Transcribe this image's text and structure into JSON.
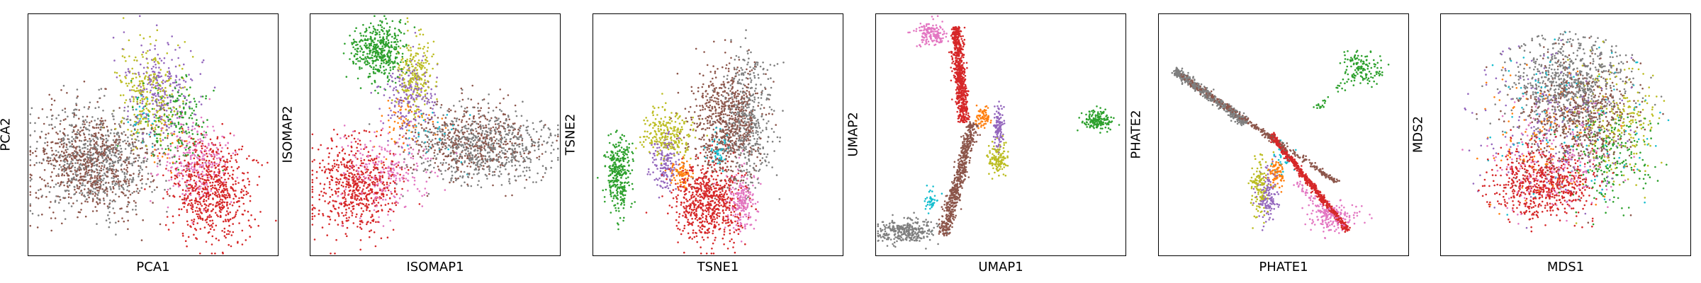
{
  "chart_data": [
    {
      "type": "scatter",
      "xlabel": "PCA1",
      "ylabel": "PCA2",
      "grid": false,
      "legend": "none",
      "point_colors": [
        "#8c564b",
        "#7f7f7f",
        "#d62728",
        "#e377c2",
        "#bcbd22",
        "#9467bd",
        "#2ca02c",
        "#ff7f0e",
        "#17becf"
      ],
      "clusters": [
        {
          "color": "#7f7f7f",
          "cx": 0.27,
          "cy": 0.4,
          "sx": 0.12,
          "sy": 0.11,
          "n": 650
        },
        {
          "color": "#8c564b",
          "cx": 0.25,
          "cy": 0.38,
          "sx": 0.12,
          "sy": 0.11,
          "n": 700
        },
        {
          "color": "#bcbd22",
          "cx": 0.49,
          "cy": 0.66,
          "sx": 0.07,
          "sy": 0.1,
          "n": 260
        },
        {
          "color": "#9467bd",
          "cx": 0.53,
          "cy": 0.68,
          "sx": 0.07,
          "sy": 0.1,
          "n": 260
        },
        {
          "color": "#2ca02c",
          "cx": 0.6,
          "cy": 0.55,
          "sx": 0.07,
          "sy": 0.1,
          "n": 180
        },
        {
          "color": "#e377c2",
          "cx": 0.68,
          "cy": 0.38,
          "sx": 0.07,
          "sy": 0.08,
          "n": 260
        },
        {
          "color": "#d62728",
          "cx": 0.74,
          "cy": 0.27,
          "sx": 0.08,
          "sy": 0.1,
          "n": 650
        },
        {
          "color": "#17becf",
          "cx": 0.45,
          "cy": 0.55,
          "sx": 0.03,
          "sy": 0.05,
          "n": 25
        },
        {
          "color": "#ff7f0e",
          "cx": 0.55,
          "cy": 0.45,
          "sx": 0.05,
          "sy": 0.05,
          "n": 30
        }
      ]
    },
    {
      "type": "scatter",
      "xlabel": "ISOMAP1",
      "ylabel": "ISOMAP2",
      "grid": false,
      "legend": "none",
      "clusters": [
        {
          "color": "#2ca02c",
          "cx": 0.27,
          "cy": 0.85,
          "sx": 0.05,
          "sy": 0.06,
          "n": 420
        },
        {
          "color": "#bcbd22",
          "cx": 0.42,
          "cy": 0.75,
          "sx": 0.04,
          "sy": 0.08,
          "n": 220
        },
        {
          "color": "#9467bd",
          "cx": 0.4,
          "cy": 0.66,
          "sx": 0.05,
          "sy": 0.07,
          "n": 200
        },
        {
          "color": "#7f7f7f",
          "cx": 0.7,
          "cy": 0.45,
          "sx": 0.14,
          "sy": 0.07,
          "n": 650
        },
        {
          "color": "#8c564b",
          "cx": 0.63,
          "cy": 0.48,
          "sx": 0.13,
          "sy": 0.08,
          "n": 450
        },
        {
          "color": "#d62728",
          "cx": 0.18,
          "cy": 0.28,
          "sx": 0.09,
          "sy": 0.09,
          "n": 600
        },
        {
          "color": "#e377c2",
          "cx": 0.3,
          "cy": 0.35,
          "sx": 0.1,
          "sy": 0.08,
          "n": 240
        },
        {
          "color": "#ff7f0e",
          "cx": 0.38,
          "cy": 0.55,
          "sx": 0.06,
          "sy": 0.06,
          "n": 60
        },
        {
          "color": "#17becf",
          "cx": 0.5,
          "cy": 0.5,
          "sx": 0.08,
          "sy": 0.06,
          "n": 30
        }
      ]
    },
    {
      "type": "scatter",
      "xlabel": "TSNE1",
      "ylabel": "TSNE2",
      "grid": false,
      "legend": "none",
      "clusters": [
        {
          "color": "#2ca02c",
          "cx": 0.1,
          "cy": 0.34,
          "sx": 0.025,
          "sy": 0.08,
          "n": 320
        },
        {
          "color": "#bcbd22",
          "cx": 0.29,
          "cy": 0.5,
          "sx": 0.05,
          "sy": 0.05,
          "n": 240
        },
        {
          "color": "#9467bd",
          "cx": 0.28,
          "cy": 0.38,
          "sx": 0.03,
          "sy": 0.05,
          "n": 160
        },
        {
          "color": "#ff7f0e",
          "cx": 0.35,
          "cy": 0.34,
          "sx": 0.02,
          "sy": 0.025,
          "n": 80
        },
        {
          "color": "#8c564b",
          "cx": 0.53,
          "cy": 0.55,
          "sx": 0.07,
          "sy": 0.12,
          "n": 700
        },
        {
          "color": "#7f7f7f",
          "cx": 0.62,
          "cy": 0.56,
          "sx": 0.05,
          "sy": 0.14,
          "n": 450
        },
        {
          "color": "#d62728",
          "cx": 0.46,
          "cy": 0.22,
          "sx": 0.07,
          "sy": 0.08,
          "n": 650
        },
        {
          "color": "#e377c2",
          "cx": 0.6,
          "cy": 0.22,
          "sx": 0.03,
          "sy": 0.06,
          "n": 200
        },
        {
          "color": "#17becf",
          "cx": 0.5,
          "cy": 0.43,
          "sx": 0.02,
          "sy": 0.03,
          "n": 50
        }
      ]
    },
    {
      "type": "scatter",
      "xlabel": "UMAP1",
      "ylabel": "UMAP2",
      "grid": false,
      "legend": "none",
      "clusters": [
        {
          "color": "#e377c2",
          "cx": 0.22,
          "cy": 0.92,
          "sx": 0.03,
          "sy": 0.025,
          "n": 160
        },
        {
          "color": "#2ca02c",
          "cx": 0.89,
          "cy": 0.56,
          "sx": 0.03,
          "sy": 0.02,
          "n": 160
        },
        {
          "color": "#ff7f0e",
          "cx": 0.43,
          "cy": 0.58,
          "sx": 0.015,
          "sy": 0.02,
          "n": 70
        },
        {
          "color": "#9467bd",
          "cx": 0.49,
          "cy": 0.53,
          "sx": 0.01,
          "sy": 0.05,
          "n": 110
        },
        {
          "color": "#bcbd22",
          "cx": 0.49,
          "cy": 0.4,
          "sx": 0.02,
          "sy": 0.03,
          "n": 130
        },
        {
          "color": "#7f7f7f",
          "cx": 0.12,
          "cy": 0.1,
          "sx": 0.06,
          "sy": 0.025,
          "n": 320
        },
        {
          "color": "#17becf",
          "cx": 0.22,
          "cy": 0.22,
          "sx": 0.015,
          "sy": 0.03,
          "n": 40
        }
      ],
      "strips": [
        {
          "color": "#8c564b",
          "from": [
            0.27,
            0.08
          ],
          "to": [
            0.39,
            0.55
          ],
          "width": 0.025,
          "n": 600
        },
        {
          "color": "#d62728",
          "from": [
            0.32,
            0.95
          ],
          "to": [
            0.35,
            0.55
          ],
          "width": 0.025,
          "n": 650
        }
      ]
    },
    {
      "type": "scatter",
      "xlabel": "PHATE1",
      "ylabel": "PHATE2",
      "grid": false,
      "legend": "none",
      "clusters": [
        {
          "color": "#2ca02c",
          "cx": 0.82,
          "cy": 0.78,
          "sx": 0.04,
          "sy": 0.04,
          "n": 120
        },
        {
          "color": "#e377c2",
          "cx": 0.7,
          "cy": 0.15,
          "sx": 0.05,
          "sy": 0.03,
          "n": 160
        },
        {
          "color": "#bcbd22",
          "cx": 0.4,
          "cy": 0.28,
          "sx": 0.02,
          "sy": 0.06,
          "n": 140
        },
        {
          "color": "#9467bd",
          "cx": 0.44,
          "cy": 0.25,
          "sx": 0.02,
          "sy": 0.05,
          "n": 140
        },
        {
          "color": "#ff7f0e",
          "cx": 0.47,
          "cy": 0.34,
          "sx": 0.015,
          "sy": 0.03,
          "n": 80
        },
        {
          "color": "#17becf",
          "cx": 0.5,
          "cy": 0.4,
          "sx": 0.03,
          "sy": 0.04,
          "n": 30
        }
      ],
      "strips": [
        {
          "color": "#7f7f7f",
          "from": [
            0.06,
            0.77
          ],
          "to": [
            0.35,
            0.55
          ],
          "width": 0.02,
          "n": 500
        },
        {
          "color": "#8c564b",
          "from": [
            0.08,
            0.75
          ],
          "to": [
            0.72,
            0.3
          ],
          "width": 0.012,
          "n": 400
        },
        {
          "color": "#d62728",
          "from": [
            0.45,
            0.5
          ],
          "to": [
            0.76,
            0.1
          ],
          "width": 0.012,
          "n": 600
        },
        {
          "color": "#2ca02c",
          "from": [
            0.62,
            0.6
          ],
          "to": [
            0.82,
            0.78
          ],
          "width": 0.02,
          "n": 40
        },
        {
          "color": "#e377c2",
          "from": [
            0.55,
            0.3
          ],
          "to": [
            0.7,
            0.15
          ],
          "width": 0.02,
          "n": 60
        }
      ]
    },
    {
      "type": "scatter",
      "xlabel": "MDS1",
      "ylabel": "MDS2",
      "grid": false,
      "legend": "none",
      "disk": {
        "cx": 0.5,
        "cy": 0.5,
        "r": 0.43
      },
      "clusters": [
        {
          "color": "#7f7f7f",
          "cx": 0.52,
          "cy": 0.72,
          "sx": 0.12,
          "sy": 0.1,
          "n": 700
        },
        {
          "color": "#8c564b",
          "cx": 0.55,
          "cy": 0.58,
          "sx": 0.12,
          "sy": 0.12,
          "n": 600
        },
        {
          "color": "#d62728",
          "cx": 0.4,
          "cy": 0.3,
          "sx": 0.1,
          "sy": 0.08,
          "n": 650
        },
        {
          "color": "#e377c2",
          "cx": 0.45,
          "cy": 0.38,
          "sx": 0.12,
          "sy": 0.1,
          "n": 200
        },
        {
          "color": "#2ca02c",
          "cx": 0.68,
          "cy": 0.4,
          "sx": 0.09,
          "sy": 0.1,
          "n": 200
        },
        {
          "color": "#bcbd22",
          "cx": 0.7,
          "cy": 0.55,
          "sx": 0.09,
          "sy": 0.12,
          "n": 230
        },
        {
          "color": "#9467bd",
          "cx": 0.45,
          "cy": 0.55,
          "sx": 0.16,
          "sy": 0.16,
          "n": 200
        },
        {
          "color": "#17becf",
          "cx": 0.5,
          "cy": 0.55,
          "sx": 0.18,
          "sy": 0.18,
          "n": 120
        },
        {
          "color": "#ff7f0e",
          "cx": 0.4,
          "cy": 0.48,
          "sx": 0.14,
          "sy": 0.14,
          "n": 100
        }
      ]
    }
  ]
}
